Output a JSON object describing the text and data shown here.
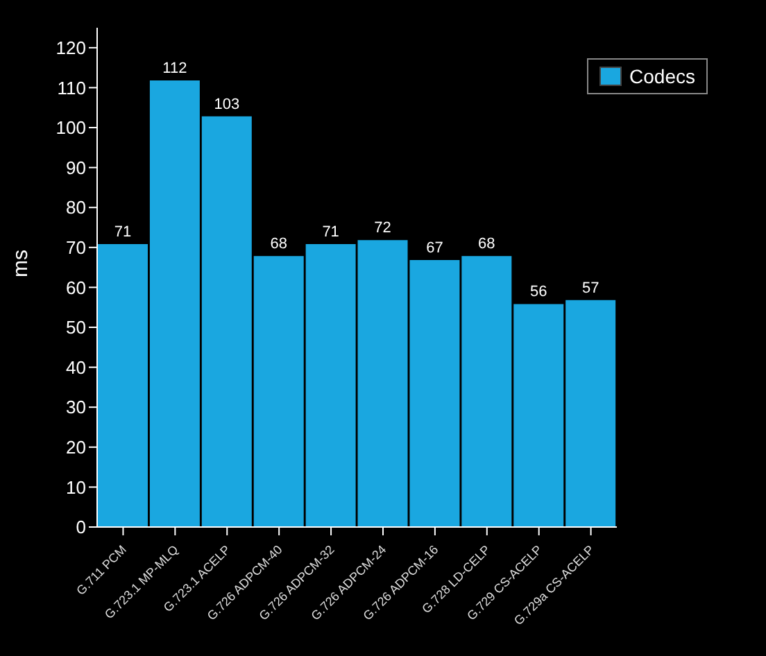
{
  "chart_data": {
    "type": "bar",
    "ylabel": "ms",
    "categories": [
      "G.711 PCM",
      "G.723.1 MP-MLQ",
      "G.723.1 ACELP",
      "G.726 ADPCM-40",
      "G.726 ADPCM-32",
      "G.726 ADPCM-24",
      "G.726 ADPCM-16",
      "G.728 LD-CELP",
      "G.729 CS-ACELP",
      "G.729a CS-ACELP"
    ],
    "series": [
      {
        "name": "Codecs",
        "color": "#1aa7e0",
        "values": [
          71,
          112,
          103,
          68,
          71,
          72,
          67,
          68,
          56,
          57
        ]
      }
    ],
    "ylim": [
      0,
      125
    ],
    "yticks": [
      0,
      10,
      20,
      30,
      40,
      50,
      60,
      70,
      80,
      90,
      100,
      110,
      120
    ],
    "data_labels": true,
    "legend": "top right",
    "grid": false
  }
}
